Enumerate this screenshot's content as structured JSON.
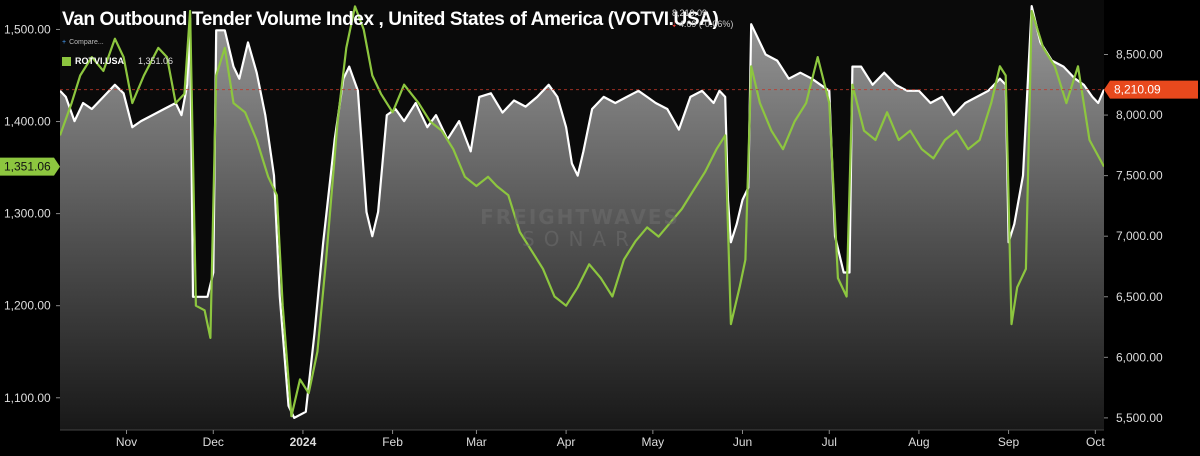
{
  "header": {
    "title": "Van Outbound Tender Volume Index , United States of America (VOTVI.USA)",
    "quote_value": "8,210.09",
    "quote_change": "4.69 (-0.06%)",
    "compare_label": "Compare...",
    "legend_name": "ROTVI.USA",
    "legend_value": "1,351.06"
  },
  "watermark": {
    "line1": "FREIGHTWAVES",
    "line2": "SONAR"
  },
  "chart_data": {
    "type": "line",
    "title": "Van Outbound Tender Volume Index , United States of America (VOTVI.USA)",
    "x_range": [
      "2023-10-09",
      "2024-10-04"
    ],
    "x_ticks": [
      {
        "label": "Nov",
        "date": "2023-11-01"
      },
      {
        "label": "Dec",
        "date": "2023-12-01"
      },
      {
        "label": "2024",
        "date": "2024-01-01"
      },
      {
        "label": "Feb",
        "date": "2024-02-01"
      },
      {
        "label": "Mar",
        "date": "2024-03-01"
      },
      {
        "label": "Apr",
        "date": "2024-04-01"
      },
      {
        "label": "May",
        "date": "2024-05-01"
      },
      {
        "label": "Jun",
        "date": "2024-06-01"
      },
      {
        "label": "Jul",
        "date": "2024-07-01"
      },
      {
        "label": "Aug",
        "date": "2024-08-01"
      },
      {
        "label": "Sep",
        "date": "2024-09-01"
      },
      {
        "label": "Oct",
        "date": "2024-10-01"
      }
    ],
    "right_axis": {
      "min": 5400,
      "max": 8950,
      "ticks": [
        "5,500.00",
        "6,000.00",
        "6,500.00",
        "7,000.00",
        "7,500.00",
        "8,000.00",
        "8,500.00"
      ],
      "tick_values": [
        5500,
        6000,
        6500,
        7000,
        7500,
        8000,
        8500
      ],
      "last_value_label": "8,210.09",
      "last_value": 8210.09,
      "last_value_color": "#e8491d"
    },
    "left_axis": {
      "min": 1065,
      "max": 1532,
      "ticks": [
        "1,100.00",
        "1,200.00",
        "1,300.00",
        "1,400.00",
        "1,500.00"
      ],
      "tick_values": [
        1100,
        1200,
        1300,
        1400,
        1500
      ],
      "last_value_label": "1,351.06",
      "last_value": 1351.06,
      "last_value_color": "#8dc63f"
    },
    "series": [
      {
        "name": "VOTVI.USA",
        "axis": "right",
        "color": "#ffffff",
        "fill": "gradient-gray",
        "points": [
          [
            "2023-10-09",
            8200
          ],
          [
            "2023-10-11",
            8150
          ],
          [
            "2023-10-14",
            7950
          ],
          [
            "2023-10-17",
            8100
          ],
          [
            "2023-10-20",
            8050
          ],
          [
            "2023-10-24",
            8150
          ],
          [
            "2023-10-28",
            8250
          ],
          [
            "2023-10-31",
            8180
          ],
          [
            "2023-11-03",
            7900
          ],
          [
            "2023-11-06",
            7950
          ],
          [
            "2023-11-10",
            8000
          ],
          [
            "2023-11-14",
            8050
          ],
          [
            "2023-11-18",
            8100
          ],
          [
            "2023-11-20",
            8000
          ],
          [
            "2023-11-22",
            8250
          ],
          [
            "2023-11-23",
            8800
          ],
          [
            "2023-11-24",
            6500
          ],
          [
            "2023-11-29",
            6500
          ],
          [
            "2023-12-01",
            6700
          ],
          [
            "2023-12-02",
            8700
          ],
          [
            "2023-12-05",
            8700
          ],
          [
            "2023-12-08",
            8400
          ],
          [
            "2023-12-10",
            8300
          ],
          [
            "2023-12-13",
            8600
          ],
          [
            "2023-12-16",
            8350
          ],
          [
            "2023-12-19",
            8000
          ],
          [
            "2023-12-22",
            7500
          ],
          [
            "2023-12-24",
            6500
          ],
          [
            "2023-12-27",
            5600
          ],
          [
            "2023-12-29",
            5500
          ],
          [
            "2024-01-02",
            5550
          ],
          [
            "2024-01-05",
            6200
          ],
          [
            "2024-01-08",
            6950
          ],
          [
            "2024-01-12",
            7800
          ],
          [
            "2024-01-15",
            8300
          ],
          [
            "2024-01-17",
            8400
          ],
          [
            "2024-01-20",
            8200
          ],
          [
            "2024-01-23",
            7200
          ],
          [
            "2024-01-25",
            7000
          ],
          [
            "2024-01-27",
            7200
          ],
          [
            "2024-01-30",
            8000
          ],
          [
            "2024-02-02",
            8050
          ],
          [
            "2024-02-05",
            7950
          ],
          [
            "2024-02-09",
            8100
          ],
          [
            "2024-02-13",
            7900
          ],
          [
            "2024-02-16",
            8000
          ],
          [
            "2024-02-20",
            7800
          ],
          [
            "2024-02-24",
            7950
          ],
          [
            "2024-02-28",
            7700
          ],
          [
            "2024-03-02",
            8150
          ],
          [
            "2024-03-06",
            8180
          ],
          [
            "2024-03-10",
            8020
          ],
          [
            "2024-03-14",
            8120
          ],
          [
            "2024-03-18",
            8070
          ],
          [
            "2024-03-22",
            8150
          ],
          [
            "2024-03-26",
            8250
          ],
          [
            "2024-03-29",
            8150
          ],
          [
            "2024-04-01",
            7900
          ],
          [
            "2024-04-03",
            7600
          ],
          [
            "2024-04-05",
            7500
          ],
          [
            "2024-04-07",
            7700
          ],
          [
            "2024-04-10",
            8050
          ],
          [
            "2024-04-14",
            8150
          ],
          [
            "2024-04-18",
            8100
          ],
          [
            "2024-04-22",
            8150
          ],
          [
            "2024-04-26",
            8200
          ],
          [
            "2024-04-29",
            8150
          ],
          [
            "2024-05-02",
            8100
          ],
          [
            "2024-05-06",
            8050
          ],
          [
            "2024-05-10",
            7880
          ],
          [
            "2024-05-14",
            8150
          ],
          [
            "2024-05-18",
            8200
          ],
          [
            "2024-05-22",
            8100
          ],
          [
            "2024-05-24",
            8200
          ],
          [
            "2024-05-26",
            8150
          ],
          [
            "2024-05-27",
            7300
          ],
          [
            "2024-05-28",
            6950
          ],
          [
            "2024-05-30",
            7100
          ],
          [
            "2024-06-01",
            7300
          ],
          [
            "2024-06-03",
            7400
          ],
          [
            "2024-06-04",
            8750
          ],
          [
            "2024-06-06",
            8650
          ],
          [
            "2024-06-09",
            8500
          ],
          [
            "2024-06-13",
            8450
          ],
          [
            "2024-06-17",
            8300
          ],
          [
            "2024-06-21",
            8350
          ],
          [
            "2024-06-25",
            8300
          ],
          [
            "2024-06-28",
            8250
          ],
          [
            "2024-07-01",
            8200
          ],
          [
            "2024-07-03",
            7000
          ],
          [
            "2024-07-06",
            6700
          ],
          [
            "2024-07-08",
            6700
          ],
          [
            "2024-07-09",
            8400
          ],
          [
            "2024-07-12",
            8400
          ],
          [
            "2024-07-16",
            8250
          ],
          [
            "2024-07-20",
            8350
          ],
          [
            "2024-07-24",
            8250
          ],
          [
            "2024-07-28",
            8200
          ],
          [
            "2024-08-01",
            8200
          ],
          [
            "2024-08-05",
            8100
          ],
          [
            "2024-08-09",
            8150
          ],
          [
            "2024-08-13",
            8000
          ],
          [
            "2024-08-17",
            8100
          ],
          [
            "2024-08-21",
            8150
          ],
          [
            "2024-08-25",
            8200
          ],
          [
            "2024-08-29",
            8300
          ],
          [
            "2024-08-31",
            8250
          ],
          [
            "2024-09-01",
            6950
          ],
          [
            "2024-09-03",
            7100
          ],
          [
            "2024-09-06",
            7500
          ],
          [
            "2024-09-09",
            8900
          ],
          [
            "2024-09-12",
            8600
          ],
          [
            "2024-09-16",
            8450
          ],
          [
            "2024-09-20",
            8400
          ],
          [
            "2024-09-24",
            8300
          ],
          [
            "2024-09-27",
            8250
          ],
          [
            "2024-09-30",
            8150
          ],
          [
            "2024-10-02",
            8100
          ],
          [
            "2024-10-04",
            8210.09
          ]
        ]
      },
      {
        "name": "ROTVI.USA",
        "axis": "left",
        "color": "#8dc63f",
        "fill": "none",
        "points": [
          [
            "2023-10-09",
            1385
          ],
          [
            "2023-10-13",
            1420
          ],
          [
            "2023-10-16",
            1450
          ],
          [
            "2023-10-20",
            1470
          ],
          [
            "2023-10-24",
            1455
          ],
          [
            "2023-10-28",
            1490
          ],
          [
            "2023-10-31",
            1470
          ],
          [
            "2023-11-03",
            1420
          ],
          [
            "2023-11-07",
            1450
          ],
          [
            "2023-11-12",
            1480
          ],
          [
            "2023-11-15",
            1470
          ],
          [
            "2023-11-18",
            1420
          ],
          [
            "2023-11-21",
            1430
          ],
          [
            "2023-11-23",
            1520
          ],
          [
            "2023-11-25",
            1200
          ],
          [
            "2023-11-28",
            1195
          ],
          [
            "2023-11-30",
            1165
          ],
          [
            "2023-12-02",
            1450
          ],
          [
            "2023-12-05",
            1480
          ],
          [
            "2023-12-08",
            1420
          ],
          [
            "2023-12-12",
            1410
          ],
          [
            "2023-12-16",
            1380
          ],
          [
            "2023-12-20",
            1340
          ],
          [
            "2023-12-23",
            1320
          ],
          [
            "2023-12-25",
            1200
          ],
          [
            "2023-12-28",
            1080
          ],
          [
            "2023-12-31",
            1120
          ],
          [
            "2024-01-03",
            1105
          ],
          [
            "2024-01-06",
            1150
          ],
          [
            "2024-01-09",
            1250
          ],
          [
            "2024-01-13",
            1400
          ],
          [
            "2024-01-16",
            1480
          ],
          [
            "2024-01-19",
            1525
          ],
          [
            "2024-01-22",
            1500
          ],
          [
            "2024-01-25",
            1450
          ],
          [
            "2024-01-28",
            1430
          ],
          [
            "2024-02-01",
            1410
          ],
          [
            "2024-02-05",
            1440
          ],
          [
            "2024-02-10",
            1420
          ],
          [
            "2024-02-14",
            1400
          ],
          [
            "2024-02-18",
            1390
          ],
          [
            "2024-02-22",
            1370
          ],
          [
            "2024-02-26",
            1340
          ],
          [
            "2024-03-01",
            1330
          ],
          [
            "2024-03-05",
            1340
          ],
          [
            "2024-03-08",
            1330
          ],
          [
            "2024-03-12",
            1320
          ],
          [
            "2024-03-16",
            1280
          ],
          [
            "2024-03-20",
            1260
          ],
          [
            "2024-03-24",
            1240
          ],
          [
            "2024-03-28",
            1210
          ],
          [
            "2024-04-01",
            1200
          ],
          [
            "2024-04-05",
            1220
          ],
          [
            "2024-04-09",
            1245
          ],
          [
            "2024-04-13",
            1230
          ],
          [
            "2024-04-17",
            1210
          ],
          [
            "2024-04-21",
            1250
          ],
          [
            "2024-04-25",
            1270
          ],
          [
            "2024-04-29",
            1285
          ],
          [
            "2024-05-03",
            1275
          ],
          [
            "2024-05-07",
            1290
          ],
          [
            "2024-05-11",
            1305
          ],
          [
            "2024-05-15",
            1325
          ],
          [
            "2024-05-19",
            1345
          ],
          [
            "2024-05-23",
            1370
          ],
          [
            "2024-05-26",
            1385
          ],
          [
            "2024-05-28",
            1180
          ],
          [
            "2024-05-31",
            1220
          ],
          [
            "2024-06-02",
            1250
          ],
          [
            "2024-06-04",
            1460
          ],
          [
            "2024-06-07",
            1420
          ],
          [
            "2024-06-11",
            1390
          ],
          [
            "2024-06-15",
            1370
          ],
          [
            "2024-06-19",
            1400
          ],
          [
            "2024-06-23",
            1420
          ],
          [
            "2024-06-27",
            1470
          ],
          [
            "2024-07-01",
            1420
          ],
          [
            "2024-07-04",
            1230
          ],
          [
            "2024-07-07",
            1210
          ],
          [
            "2024-07-09",
            1440
          ],
          [
            "2024-07-13",
            1390
          ],
          [
            "2024-07-17",
            1380
          ],
          [
            "2024-07-21",
            1410
          ],
          [
            "2024-07-25",
            1380
          ],
          [
            "2024-07-29",
            1390
          ],
          [
            "2024-08-02",
            1370
          ],
          [
            "2024-08-06",
            1360
          ],
          [
            "2024-08-10",
            1380
          ],
          [
            "2024-08-14",
            1390
          ],
          [
            "2024-08-18",
            1370
          ],
          [
            "2024-08-22",
            1380
          ],
          [
            "2024-08-26",
            1420
          ],
          [
            "2024-08-29",
            1460
          ],
          [
            "2024-08-31",
            1450
          ],
          [
            "2024-09-02",
            1180
          ],
          [
            "2024-09-04",
            1220
          ],
          [
            "2024-09-07",
            1240
          ],
          [
            "2024-09-09",
            1520
          ],
          [
            "2024-09-13",
            1480
          ],
          [
            "2024-09-17",
            1460
          ],
          [
            "2024-09-21",
            1420
          ],
          [
            "2024-09-25",
            1460
          ],
          [
            "2024-09-29",
            1380
          ],
          [
            "2024-10-04",
            1351.06
          ]
        ]
      }
    ],
    "grid": false,
    "legend": "top-left"
  }
}
